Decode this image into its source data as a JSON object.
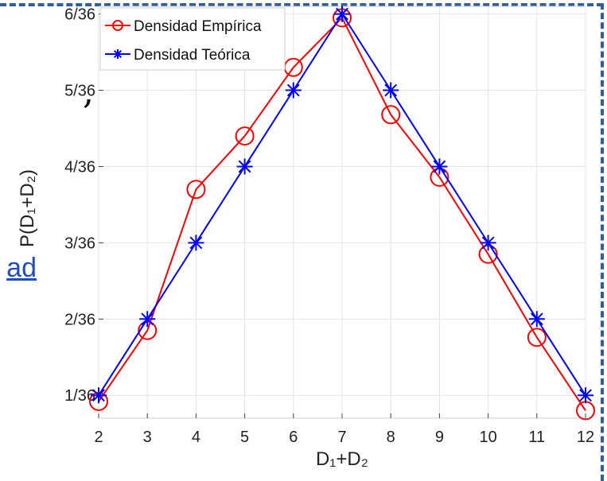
{
  "fragments": {
    "comma": ",",
    "link_tail": "ad"
  },
  "chart_data": {
    "type": "line",
    "x": [
      2,
      3,
      4,
      5,
      6,
      7,
      8,
      9,
      10,
      11,
      12
    ],
    "xlabel": "D₁+D₂",
    "ylabel": "P(D₁+D₂)",
    "xlim": [
      2,
      12
    ],
    "ylim_units_of_1_36": [
      0.7,
      6.1
    ],
    "x_ticks": [
      "2",
      "3",
      "4",
      "5",
      "6",
      "7",
      "8",
      "9",
      "10",
      "11",
      "12"
    ],
    "y_ticks": [
      "1/36",
      "2/36",
      "3/36",
      "4/36",
      "5/36",
      "6/36"
    ],
    "y_tick_values_over_36": [
      1,
      2,
      3,
      4,
      5,
      6
    ],
    "grid": true,
    "legend_position": "top-left",
    "series": [
      {
        "name": "Densidad Empírica",
        "color": "#ff0000",
        "marker": "circle",
        "values_over_36": [
          0.92,
          1.85,
          3.7,
          4.4,
          5.3,
          5.95,
          4.68,
          3.86,
          2.85,
          1.76,
          0.8
        ]
      },
      {
        "name": "Densidad Teórica",
        "color": "#0000ff",
        "marker": "star",
        "values_over_36": [
          1,
          2,
          3,
          4,
          5,
          6,
          5,
          4,
          3,
          2,
          1
        ]
      }
    ]
  }
}
